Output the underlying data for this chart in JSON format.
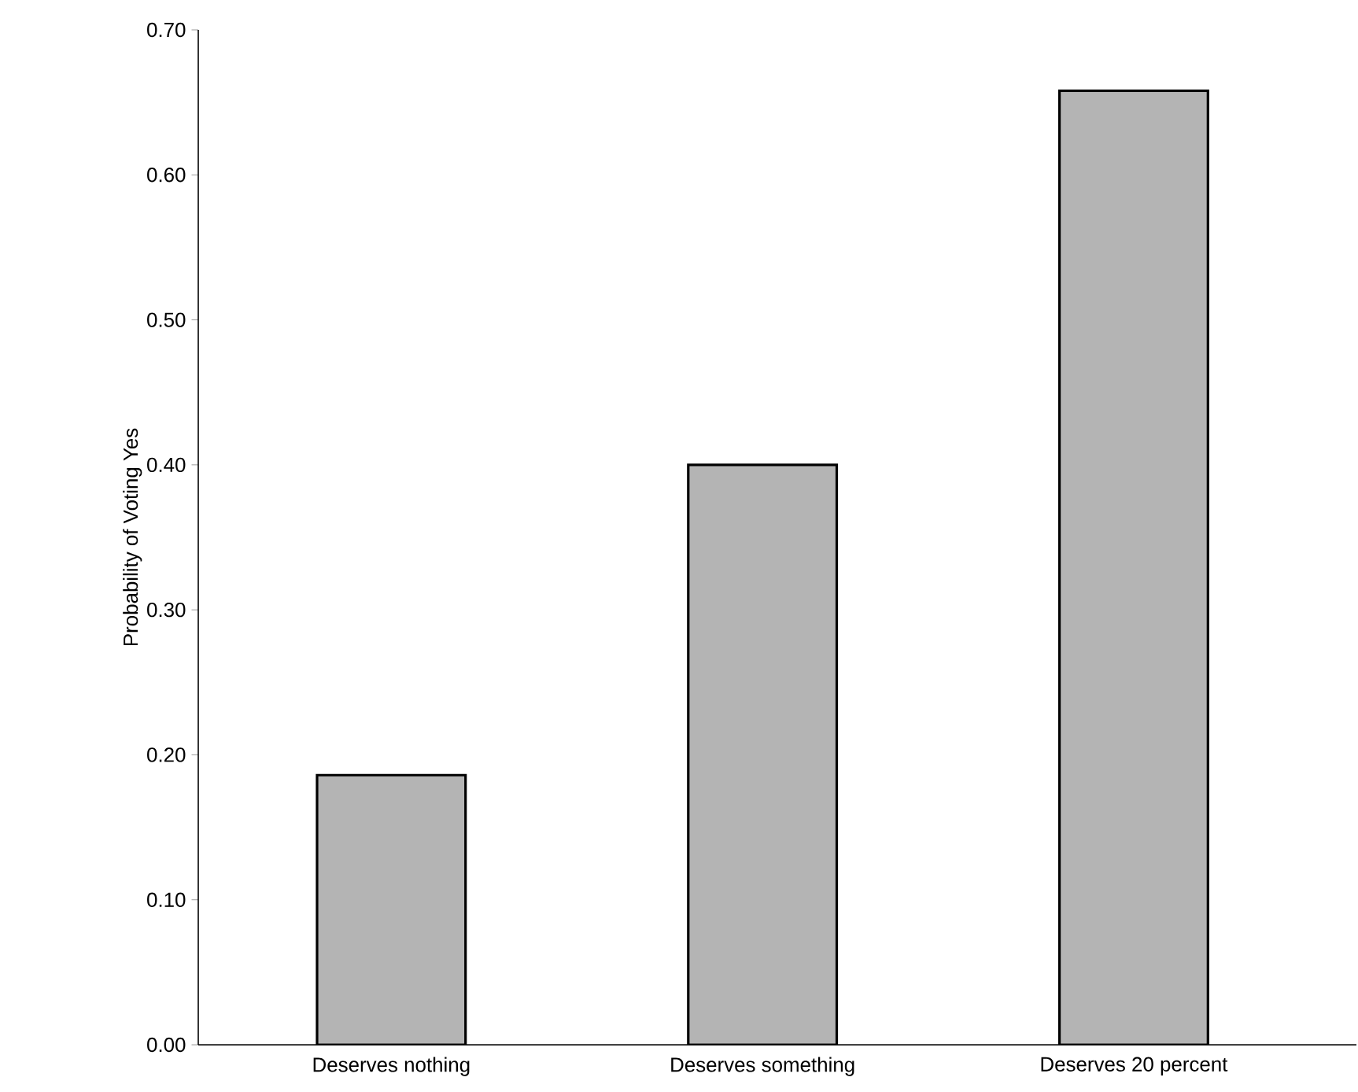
{
  "chart_data": {
    "type": "bar",
    "ylabel": "Probability of Voting Yes",
    "categories": [
      "Deserves nothing",
      "Deserves something",
      "Deserves 20 percent"
    ],
    "values": [
      0.186,
      0.4,
      0.658
    ],
    "color": "#b4b4b4",
    "ylim": [
      0,
      0.7
    ],
    "yticks": [
      {
        "value": 0,
        "label": "0.00"
      },
      {
        "value": 0.1,
        "label": "0.10"
      },
      {
        "value": 0.2,
        "label": "0.20"
      },
      {
        "value": 0.3,
        "label": "0.30"
      },
      {
        "value": 0.4,
        "label": "0.40"
      },
      {
        "value": 0.5,
        "label": "0.50"
      },
      {
        "value": 0.6,
        "label": "0.60"
      },
      {
        "value": 0.7,
        "label": "0.70"
      }
    ],
    "grid": false
  }
}
